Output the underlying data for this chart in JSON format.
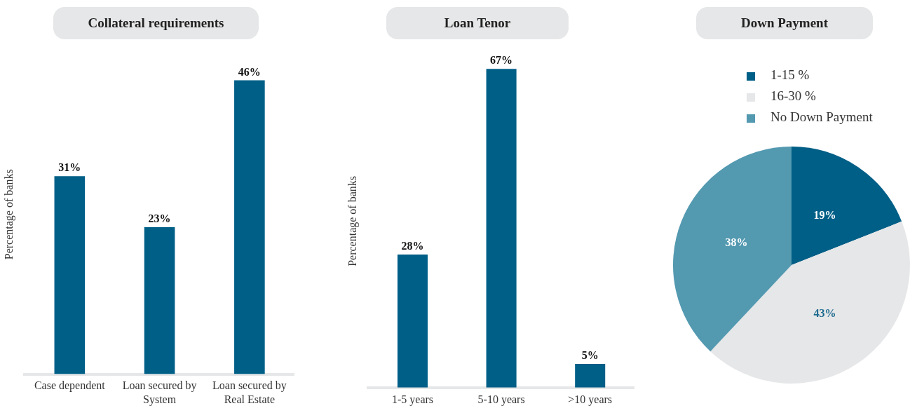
{
  "chart_data": [
    {
      "type": "bar",
      "title": "Collateral requirements",
      "ylabel": "Percentage of banks",
      "categories": [
        "Case dependent",
        "Loan secured by System",
        "Loan secured by Real Estate"
      ],
      "values": [
        31,
        23,
        46
      ],
      "value_labels": [
        "31%",
        "23%",
        "46%"
      ],
      "color": "#005f87",
      "tick_labels": "x",
      "grid": false,
      "legend": false
    },
    {
      "type": "bar",
      "title": "Loan Tenor",
      "ylabel": "Percentage of banks",
      "categories": [
        "1-5 years",
        "5-10 years",
        ">10 years"
      ],
      "values": [
        28,
        67,
        5
      ],
      "value_labels": [
        "28%",
        "67%",
        "5%"
      ],
      "color": "#005f87",
      "tick_labels": "x",
      "grid": false,
      "legend": false
    },
    {
      "type": "pie",
      "title": "Down Payment",
      "categories": [
        "1-15 %",
        "16-30 %",
        "No Down Payment"
      ],
      "values": [
        19,
        43,
        38
      ],
      "value_labels": [
        "19%",
        "43%",
        "38%"
      ],
      "colors": [
        "#005f87",
        "#e6e7e8",
        "#5399b0"
      ],
      "legend": "top"
    }
  ]
}
